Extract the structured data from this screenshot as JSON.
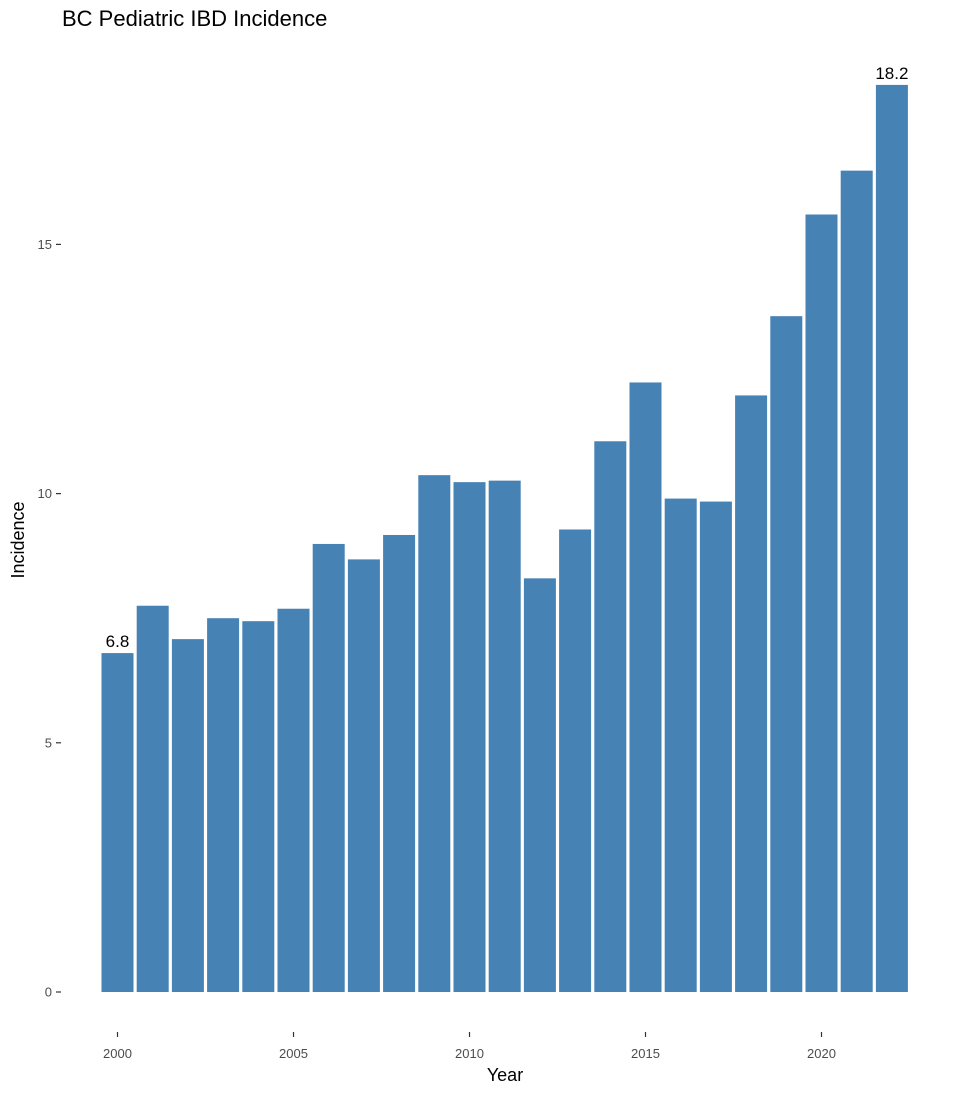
{
  "chart_data": {
    "type": "bar",
    "title": "BC Pediatric IBD Incidence",
    "xlabel": "Year",
    "ylabel": "Incidence",
    "x": [
      2000,
      2001,
      2002,
      2003,
      2004,
      2005,
      2006,
      2007,
      2008,
      2009,
      2010,
      2011,
      2012,
      2013,
      2014,
      2015,
      2016,
      2017,
      2018,
      2019,
      2020,
      2021,
      2022
    ],
    "values": [
      6.8,
      7.75,
      7.08,
      7.5,
      7.44,
      7.69,
      8.99,
      8.68,
      9.17,
      10.37,
      10.23,
      10.26,
      8.3,
      9.28,
      11.05,
      12.23,
      9.9,
      9.84,
      11.97,
      13.56,
      15.6,
      16.48,
      18.2
    ],
    "xticks": [
      "2000",
      "2005",
      "2010",
      "2015",
      "2020"
    ],
    "yticks": [
      "0",
      "5",
      "10",
      "15"
    ],
    "ylim": [
      0,
      18.5
    ],
    "grid": false,
    "bar_color": "#4682B4",
    "data_labels": [
      {
        "year": 2000,
        "text": "6.8"
      },
      {
        "year": 2022,
        "text": "18.2"
      }
    ]
  }
}
